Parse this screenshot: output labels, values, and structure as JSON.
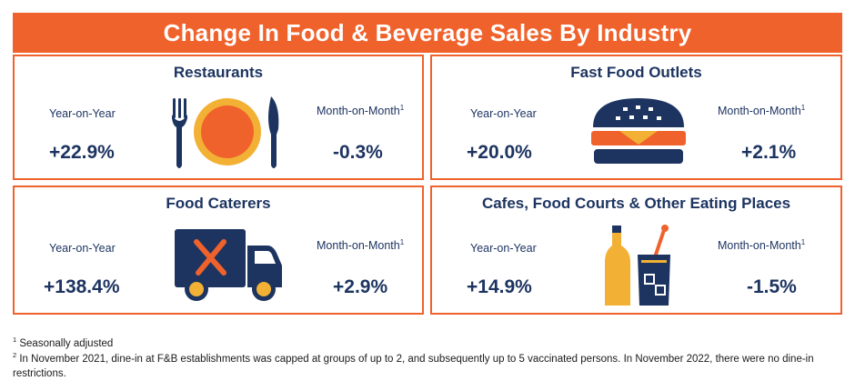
{
  "title": "Change In Food & Beverage Sales By Industry",
  "panels": [
    {
      "title": "Restaurants",
      "yoy_label": "Year-on-Year",
      "mom_label": "Month-on-Month",
      "mom_sup": "1",
      "yoy_value": "+22.9%",
      "mom_value": "-0.3%",
      "icon": "plate-fork-knife-icon"
    },
    {
      "title": "Fast Food Outlets",
      "yoy_label": "Year-on-Year",
      "mom_label": "Month-on-Month",
      "mom_sup": "1",
      "yoy_value": "+20.0%",
      "mom_value": "+2.1%",
      "icon": "burger-icon"
    },
    {
      "title": "Food Caterers",
      "yoy_label": "Year-on-Year",
      "mom_label": "Month-on-Month",
      "mom_sup": "1",
      "yoy_value": "+138.4%",
      "mom_value": "+2.9%",
      "icon": "catering-truck-icon"
    },
    {
      "title": "Cafes, Food Courts & Other Eating Places",
      "yoy_label": "Year-on-Year",
      "mom_label": "Month-on-Month",
      "mom_sup": "1",
      "yoy_value": "+14.9%",
      "mom_value": "-1.5%",
      "icon": "bottle-and-drink-icon"
    }
  ],
  "footnotes": [
    {
      "sup": "1",
      "text": " Seasonally adjusted"
    },
    {
      "sup": "2",
      "text": " In November 2021, dine-in at F&B establishments was capped at groups of up to 2, and subsequently up to 5 vaccinated persons. In November 2022, there were no dine-in restrictions."
    }
  ],
  "colors": {
    "accent": "#f0622c",
    "navy": "#1d3461",
    "gold": "#f2b134"
  }
}
